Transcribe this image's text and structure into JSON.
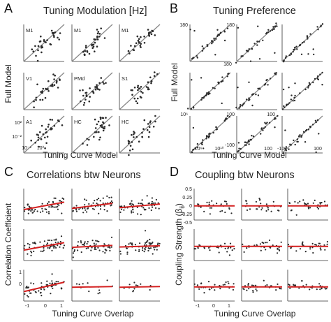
{
  "panels": {
    "A": {
      "letter": "A",
      "title": "Tuning Modulation [Hz]",
      "ylabel": "Full Model",
      "xlabel": "Tuning Curve Model",
      "subplot_labels": [
        "M1",
        "M1",
        "M1",
        "V1",
        "PMd",
        "S1",
        "A1",
        "HC",
        "HC"
      ],
      "tick_labels": [
        "10⁻²",
        "10⁰",
        "10²",
        "10⁻²"
      ]
    },
    "B": {
      "letter": "B",
      "title": "Tuning Preference",
      "ylabel": "Full Model",
      "xlabel": "Tuning Curve Model",
      "tick_labels": [
        "180",
        "180",
        "180",
        "10⁶",
        "10⁶",
        "10¹⁰",
        "-100",
        "100",
        "100",
        "100",
        "-100",
        "100"
      ]
    },
    "C": {
      "letter": "C",
      "title": "Correlations btw Neurons",
      "ylabel": "Correlation Coefficient",
      "xlabel": "Tuning Curve Overlap",
      "tick_labels": [
        "1",
        "0",
        "-1",
        "0",
        "1"
      ]
    },
    "D": {
      "letter": "D",
      "title": "Coupling btw Neurons",
      "ylabel_main": "Coupling Strength (β",
      "ylabel_sub": "ij",
      "ylabel_close": ")",
      "xlabel": "Tuning Curve Overlap",
      "tick_labels": [
        "0.5",
        "0.25",
        "0",
        "-0.25",
        "-0.5",
        "-1",
        "0",
        "1"
      ]
    }
  },
  "colors": {
    "points": "#2b2b2b",
    "identity_line": "#888888",
    "fit_line": "#d42020",
    "axes": "#333333"
  },
  "chart_data": [
    {
      "type": "scatter",
      "panel": "A",
      "scale": "log",
      "title": "Tuning Modulation [Hz]",
      "xlabel": "Tuning Curve Model",
      "ylabel": "Full Model",
      "identity_line": true,
      "subplots": [
        "M1",
        "M1",
        "M1",
        "V1",
        "PMd",
        "S1",
        "A1",
        "HC",
        "HC"
      ]
    },
    {
      "type": "scatter",
      "panel": "B",
      "title": "Tuning Preference",
      "xlabel": "Tuning Curve Model",
      "ylabel": "Full Model",
      "identity_line": true,
      "axis_ranges": [
        [
          0,
          180
        ],
        [
          0,
          180
        ],
        [
          0,
          180
        ],
        [
          0,
          180
        ],
        [
          0,
          180
        ],
        [
          0,
          180
        ],
        [
          1000000,
          10000000000
        ],
        [
          -100,
          100
        ],
        [
          -100,
          100
        ]
      ]
    },
    {
      "type": "scatter",
      "panel": "C",
      "title": "Correlations btw Neurons",
      "xlabel": "Tuning Curve Overlap",
      "ylabel": "Correlation Coefficient",
      "xlim": [
        -1,
        1
      ],
      "fit_line_slopes": [
        0.12,
        0.08,
        0.06,
        0.12,
        0.03,
        0.02,
        0.15,
        0.01,
        0.01
      ]
    },
    {
      "type": "scatter",
      "panel": "D",
      "title": "Coupling btw Neurons",
      "xlabel": "Tuning Curve Overlap",
      "ylabel": "Coupling Strength (βij)",
      "xlim": [
        -1,
        1
      ],
      "ylim": [
        -0.5,
        0.5
      ],
      "yticks": [
        0.5,
        0.25,
        0,
        -0.25,
        -0.5
      ],
      "fit_line_slopes": [
        0,
        0,
        0,
        0,
        0,
        0,
        0,
        0,
        0
      ]
    }
  ]
}
